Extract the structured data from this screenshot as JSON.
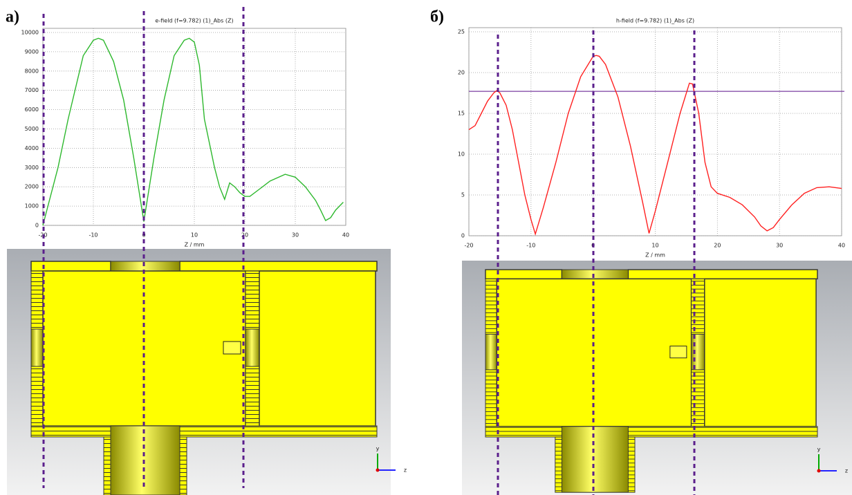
{
  "labels": {
    "a": "а)",
    "b": "б)"
  },
  "axes_icon": {
    "y": "y",
    "z": "z"
  },
  "chart_data": [
    {
      "type": "line",
      "title": "e-field (f=9.782) (1)_Abs (Z)",
      "x_label": "Z / mm",
      "color": "#2db82d",
      "grid": true,
      "x": [
        -20,
        -17,
        -15,
        -12,
        -10,
        -9,
        -8,
        -6,
        -4,
        -2,
        0,
        2,
        4,
        6,
        8,
        9,
        10,
        11,
        12,
        14,
        15,
        16,
        17,
        18,
        19,
        20,
        21,
        23,
        25,
        28,
        30,
        32,
        34,
        35,
        36,
        37,
        38,
        39.5
      ],
      "values": [
        0,
        3000,
        5500,
        8800,
        9600,
        9700,
        9600,
        8500,
        6500,
        3500,
        200,
        3500,
        6500,
        8800,
        9600,
        9700,
        9500,
        8300,
        5500,
        3000,
        2000,
        1350,
        2200,
        2000,
        1700,
        1500,
        1500,
        1900,
        2300,
        2650,
        2500,
        2000,
        1300,
        800,
        250,
        400,
        800,
        1200
      ],
      "xlim": [
        -20,
        40
      ],
      "xticks": [
        -20,
        -10,
        0,
        10,
        20,
        30,
        40
      ],
      "ylim": [
        0,
        10000
      ],
      "yticks": [
        0,
        1000,
        2000,
        3000,
        4000,
        5000,
        6000,
        7000,
        8000,
        9000,
        10000
      ]
    },
    {
      "type": "line",
      "title": "h-field (f=9.782) (1)_Abs (Z)",
      "x_label": "Z / mm",
      "color": "#ff2020",
      "grid": true,
      "x": [
        -20,
        -19,
        -18,
        -17,
        -16,
        -15.5,
        -15,
        -14,
        -13,
        -12,
        -11,
        -10,
        -9.3,
        -8,
        -6,
        -4,
        -2,
        0,
        0.5,
        1,
        2,
        4,
        6,
        8,
        9,
        10,
        12,
        14,
        15.5,
        16,
        17,
        18,
        19,
        20,
        22,
        24,
        26,
        27,
        28,
        29,
        30,
        32,
        34,
        36,
        38,
        40
      ],
      "values": [
        13,
        13.5,
        15,
        16.5,
        17.5,
        17.8,
        17.5,
        16,
        13,
        9,
        5,
        2,
        0.2,
        3.5,
        9,
        15,
        19.5,
        22,
        22.1,
        22,
        21,
        17,
        11,
        4,
        0.3,
        3,
        9,
        15,
        18.7,
        18.6,
        15,
        9,
        6,
        5.2,
        4.7,
        3.8,
        2.3,
        1.2,
        0.6,
        1,
        2,
        3.8,
        5.2,
        5.9,
        6,
        5.8
      ],
      "reference_line": 17.7,
      "reference_color": "#7a3ea0",
      "xlim": [
        -20,
        40
      ],
      "xticks": [
        -20,
        -10,
        0,
        10,
        20,
        30,
        40
      ],
      "ylim": [
        0,
        25
      ],
      "yticks": [
        0,
        5,
        10,
        15,
        20,
        25
      ]
    }
  ]
}
